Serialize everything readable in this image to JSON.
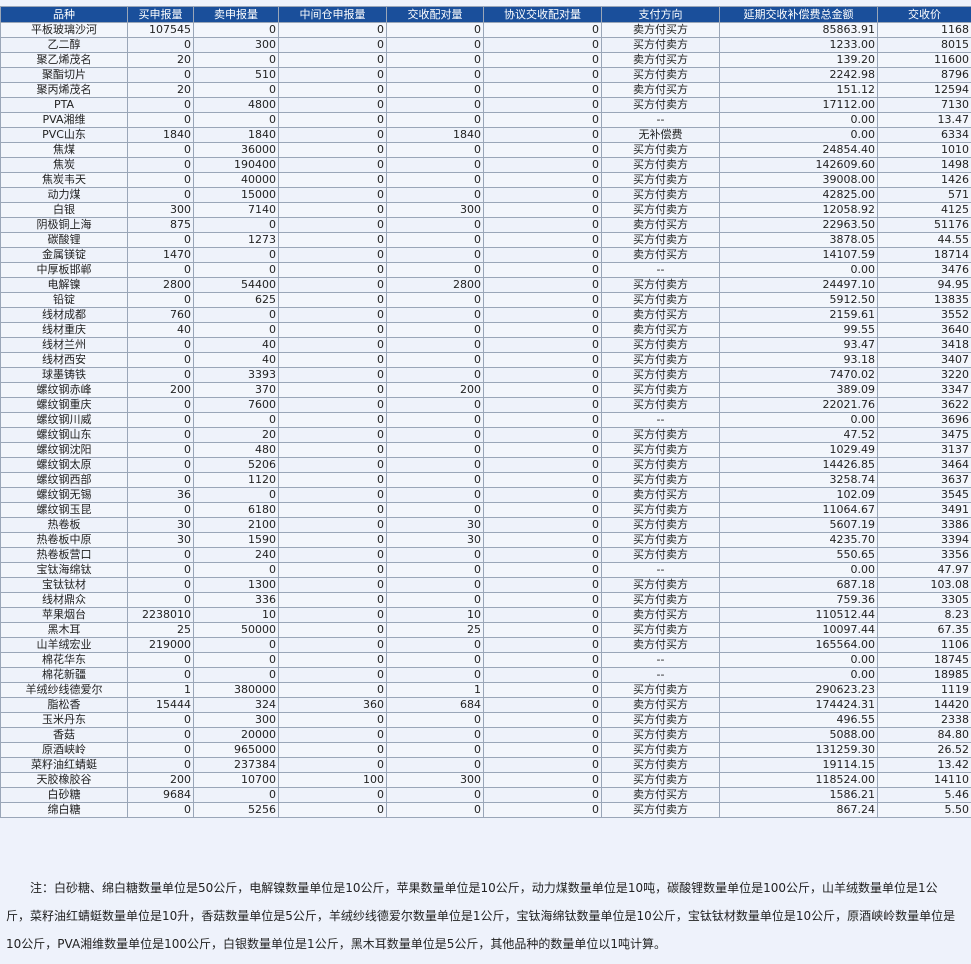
{
  "headers": [
    "品种",
    "买申报量",
    "卖申报量",
    "中间仓申报量",
    "交收配对量",
    "协议交收配对量",
    "支付方向",
    "延期交收补偿费总金额",
    "交收价"
  ],
  "rows": [
    [
      "平板玻璃沙河",
      "107545",
      "0",
      "0",
      "0",
      "0",
      "卖方付买方",
      "85863.91",
      "1168"
    ],
    [
      "乙二醇",
      "0",
      "300",
      "0",
      "0",
      "0",
      "买方付卖方",
      "1233.00",
      "8015"
    ],
    [
      "聚乙烯茂名",
      "20",
      "0",
      "0",
      "0",
      "0",
      "卖方付买方",
      "139.20",
      "11600"
    ],
    [
      "聚酯切片",
      "0",
      "510",
      "0",
      "0",
      "0",
      "买方付卖方",
      "2242.98",
      "8796"
    ],
    [
      "聚丙烯茂名",
      "20",
      "0",
      "0",
      "0",
      "0",
      "卖方付买方",
      "151.12",
      "12594"
    ],
    [
      "PTA",
      "0",
      "4800",
      "0",
      "0",
      "0",
      "买方付卖方",
      "17112.00",
      "7130"
    ],
    [
      "PVA湘维",
      "0",
      "0",
      "0",
      "0",
      "0",
      "--",
      "0.00",
      "13.47"
    ],
    [
      "PVC山东",
      "1840",
      "1840",
      "0",
      "1840",
      "0",
      "无补偿费",
      "0.00",
      "6334"
    ],
    [
      "焦煤",
      "0",
      "36000",
      "0",
      "0",
      "0",
      "买方付卖方",
      "24854.40",
      "1010"
    ],
    [
      "焦炭",
      "0",
      "190400",
      "0",
      "0",
      "0",
      "买方付卖方",
      "142609.60",
      "1498"
    ],
    [
      "焦炭韦天",
      "0",
      "40000",
      "0",
      "0",
      "0",
      "买方付卖方",
      "39008.00",
      "1426"
    ],
    [
      "动力煤",
      "0",
      "15000",
      "0",
      "0",
      "0",
      "买方付卖方",
      "42825.00",
      "571"
    ],
    [
      "白银",
      "300",
      "7140",
      "0",
      "300",
      "0",
      "买方付卖方",
      "12058.92",
      "4125"
    ],
    [
      "阴极铜上海",
      "875",
      "0",
      "0",
      "0",
      "0",
      "卖方付买方",
      "22963.50",
      "51176"
    ],
    [
      "碳酸锂",
      "0",
      "1273",
      "0",
      "0",
      "0",
      "买方付卖方",
      "3878.05",
      "44.55"
    ],
    [
      "金属镁锭",
      "1470",
      "0",
      "0",
      "0",
      "0",
      "卖方付买方",
      "14107.59",
      "18714"
    ],
    [
      "中厚板邯郸",
      "0",
      "0",
      "0",
      "0",
      "0",
      "--",
      "0.00",
      "3476"
    ],
    [
      "电解镍",
      "2800",
      "54400",
      "0",
      "2800",
      "0",
      "买方付卖方",
      "24497.10",
      "94.95"
    ],
    [
      "铅锭",
      "0",
      "625",
      "0",
      "0",
      "0",
      "买方付卖方",
      "5912.50",
      "13835"
    ],
    [
      "线材成都",
      "760",
      "0",
      "0",
      "0",
      "0",
      "卖方付买方",
      "2159.61",
      "3552"
    ],
    [
      "线材重庆",
      "40",
      "0",
      "0",
      "0",
      "0",
      "卖方付买方",
      "99.55",
      "3640"
    ],
    [
      "线材兰州",
      "0",
      "40",
      "0",
      "0",
      "0",
      "买方付卖方",
      "93.47",
      "3418"
    ],
    [
      "线材西安",
      "0",
      "40",
      "0",
      "0",
      "0",
      "买方付卖方",
      "93.18",
      "3407"
    ],
    [
      "球墨铸铁",
      "0",
      "3393",
      "0",
      "0",
      "0",
      "买方付卖方",
      "7470.02",
      "3220"
    ],
    [
      "螺纹钢赤峰",
      "200",
      "370",
      "0",
      "200",
      "0",
      "买方付卖方",
      "389.09",
      "3347"
    ],
    [
      "螺纹钢重庆",
      "0",
      "7600",
      "0",
      "0",
      "0",
      "买方付卖方",
      "22021.76",
      "3622"
    ],
    [
      "螺纹钢川威",
      "0",
      "0",
      "0",
      "0",
      "0",
      "--",
      "0.00",
      "3696"
    ],
    [
      "螺纹钢山东",
      "0",
      "20",
      "0",
      "0",
      "0",
      "买方付卖方",
      "47.52",
      "3475"
    ],
    [
      "螺纹钢沈阳",
      "0",
      "480",
      "0",
      "0",
      "0",
      "买方付卖方",
      "1029.49",
      "3137"
    ],
    [
      "螺纹钢太原",
      "0",
      "5206",
      "0",
      "0",
      "0",
      "买方付卖方",
      "14426.85",
      "3464"
    ],
    [
      "螺纹钢西部",
      "0",
      "1120",
      "0",
      "0",
      "0",
      "买方付卖方",
      "3258.74",
      "3637"
    ],
    [
      "螺纹钢无锡",
      "36",
      "0",
      "0",
      "0",
      "0",
      "卖方付买方",
      "102.09",
      "3545"
    ],
    [
      "螺纹钢玉昆",
      "0",
      "6180",
      "0",
      "0",
      "0",
      "买方付卖方",
      "11064.67",
      "3491"
    ],
    [
      "热卷板",
      "30",
      "2100",
      "0",
      "30",
      "0",
      "买方付卖方",
      "5607.19",
      "3386"
    ],
    [
      "热卷板中原",
      "30",
      "1590",
      "0",
      "30",
      "0",
      "买方付卖方",
      "4235.70",
      "3394"
    ],
    [
      "热卷板营口",
      "0",
      "240",
      "0",
      "0",
      "0",
      "买方付卖方",
      "550.65",
      "3356"
    ],
    [
      "宝钛海绵钛",
      "0",
      "0",
      "0",
      "0",
      "0",
      "--",
      "0.00",
      "47.97"
    ],
    [
      "宝钛钛材",
      "0",
      "1300",
      "0",
      "0",
      "0",
      "买方付卖方",
      "687.18",
      "103.08"
    ],
    [
      "线材鼎众",
      "0",
      "336",
      "0",
      "0",
      "0",
      "买方付卖方",
      "759.36",
      "3305"
    ],
    [
      "苹果烟台",
      "2238010",
      "10",
      "0",
      "10",
      "0",
      "卖方付买方",
      "110512.44",
      "8.23"
    ],
    [
      "黑木耳",
      "25",
      "50000",
      "0",
      "25",
      "0",
      "买方付卖方",
      "10097.44",
      "67.35"
    ],
    [
      "山羊绒宏业",
      "219000",
      "0",
      "0",
      "0",
      "0",
      "卖方付买方",
      "165564.00",
      "1106"
    ],
    [
      "棉花华东",
      "0",
      "0",
      "0",
      "0",
      "0",
      "--",
      "0.00",
      "18745"
    ],
    [
      "棉花新疆",
      "0",
      "0",
      "0",
      "0",
      "0",
      "--",
      "0.00",
      "18985"
    ],
    [
      "羊绒纱线德爱尔",
      "1",
      "380000",
      "0",
      "1",
      "0",
      "买方付卖方",
      "290623.23",
      "1119"
    ],
    [
      "脂松香",
      "15444",
      "324",
      "360",
      "684",
      "0",
      "卖方付买方",
      "174424.31",
      "14420"
    ],
    [
      "玉米丹东",
      "0",
      "300",
      "0",
      "0",
      "0",
      "买方付卖方",
      "496.55",
      "2338"
    ],
    [
      "香菇",
      "0",
      "20000",
      "0",
      "0",
      "0",
      "买方付卖方",
      "5088.00",
      "84.80"
    ],
    [
      "原酒峡岭",
      "0",
      "965000",
      "0",
      "0",
      "0",
      "买方付卖方",
      "131259.30",
      "26.52"
    ],
    [
      "菜籽油红蜻蜓",
      "0",
      "237384",
      "0",
      "0",
      "0",
      "买方付卖方",
      "19114.15",
      "13.42"
    ],
    [
      "天胶橡胶谷",
      "200",
      "10700",
      "100",
      "300",
      "0",
      "买方付卖方",
      "118524.00",
      "14110"
    ],
    [
      "白砂糖",
      "9684",
      "0",
      "0",
      "0",
      "0",
      "卖方付买方",
      "1586.21",
      "5.46"
    ],
    [
      "绵白糖",
      "0",
      "5256",
      "0",
      "0",
      "0",
      "买方付卖方",
      "867.24",
      "5.50"
    ]
  ],
  "note": "注：白砂糖、绵白糖数量单位是50公斤，电解镍数量单位是10公斤，苹果数量单位是10公斤，动力煤数量单位是10吨，碳酸锂数量单位是100公斤，山羊绒数量单位是1公斤，菜籽油红蜻蜓数量单位是10升，香菇数量单位是5公斤，羊绒纱线德爱尔数量单位是1公斤，宝钛海绵钛数量单位是10公斤，宝钛钛材数量单位是10公斤，原酒峡岭数量单位是10公斤，PVA湘维数量单位是100公斤，白银数量单位是1公斤，黑木耳数量单位是5公斤，其他品种的数量单位以1吨计算。",
  "colors": {
    "header_bg": "#1a4f9b",
    "header_text": "#ffffff",
    "border": "#9aa6b8"
  }
}
